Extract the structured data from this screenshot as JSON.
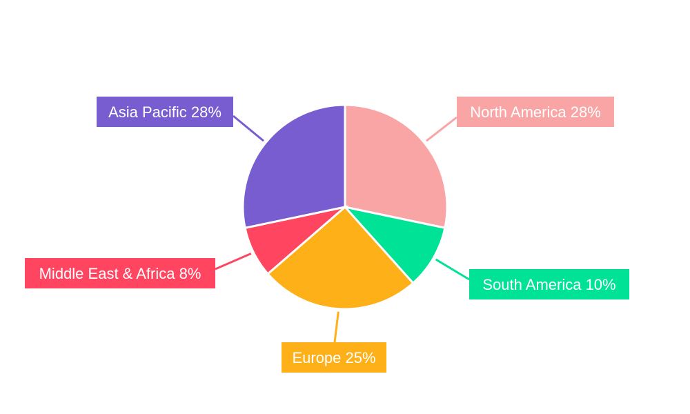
{
  "chart_data": {
    "type": "pie",
    "title": "",
    "start_angle": "top",
    "direction": "clockwise",
    "slices": [
      {
        "label": "North America",
        "value": 28,
        "display": "North America 28%",
        "color": "#F9A5A6"
      },
      {
        "label": "South America",
        "value": 10,
        "display": "South America 10%",
        "color": "#00E396"
      },
      {
        "label": "Europe",
        "value": 25,
        "display": "Europe 25%",
        "color": "#FEB019"
      },
      {
        "label": "Middle East & Africa",
        "value": 8,
        "display": "Middle East & Africa 8%",
        "color": "#FF4560"
      },
      {
        "label": "Asia Pacific",
        "value": 28,
        "display": "Asia Pacific 28%",
        "color": "#775DD0"
      }
    ]
  }
}
